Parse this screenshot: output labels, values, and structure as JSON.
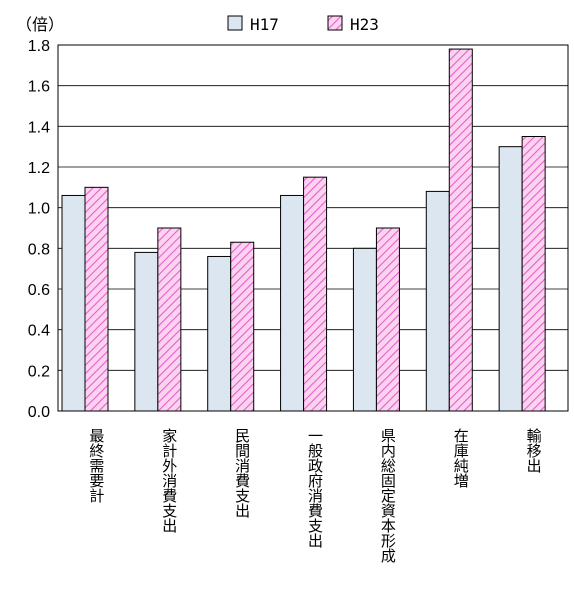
{
  "chart_data": {
    "type": "bar",
    "ylabel": "（倍）",
    "ylim": [
      0,
      1.8
    ],
    "yticks": [
      "0.0",
      "0.2",
      "0.4",
      "0.6",
      "0.8",
      "1.0",
      "1.2",
      "1.4",
      "1.6",
      "1.8"
    ],
    "categories": [
      "最終需要計",
      "家計外消費支出",
      "民間消費支出",
      "一般政府消費支出",
      "県内総固定資本形成",
      "在庫純増",
      "輸移出"
    ],
    "series": [
      {
        "name": "H17",
        "values": [
          1.06,
          0.78,
          0.76,
          1.06,
          0.8,
          1.08,
          1.3
        ],
        "color": "#dce6f1",
        "pattern": "none"
      },
      {
        "name": "H23",
        "values": [
          1.1,
          0.9,
          0.83,
          1.15,
          0.9,
          1.78,
          1.35
        ],
        "color": "#f7b6e8",
        "pattern": "diagonal-hatch"
      }
    ],
    "grid": true,
    "legend": "top"
  }
}
